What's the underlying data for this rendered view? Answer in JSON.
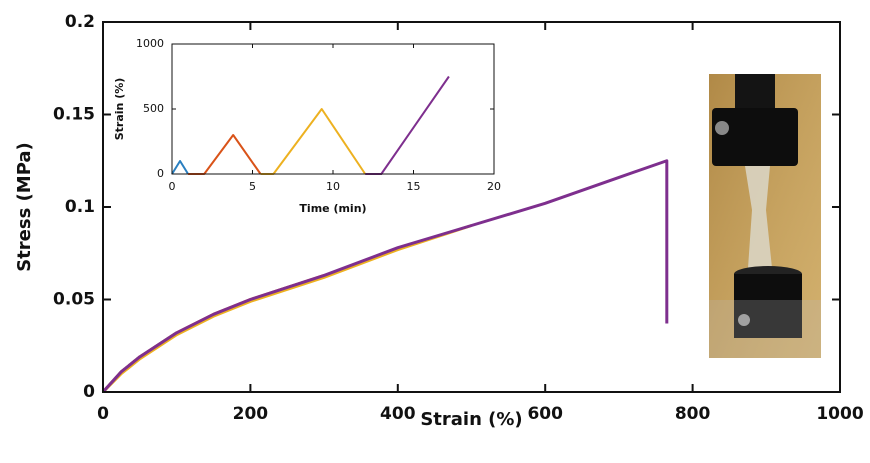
{
  "chart_data": [
    {
      "type": "line",
      "x_label": "Strain (%)",
      "y_label": "Stress (MPa)",
      "x": [
        0,
        25,
        50,
        100,
        150,
        200,
        300,
        400,
        500,
        600,
        700,
        765,
        765
      ],
      "series": [
        {
          "color": "#2a7fc0",
          "values": [
            0,
            0.011,
            0.019,
            0.032,
            null,
            null,
            null,
            null,
            null,
            null,
            null,
            null,
            null
          ]
        },
        {
          "color": "#d95319",
          "values": [
            0,
            0.011,
            0.019,
            0.032,
            0.042,
            0.05,
            0.063,
            null,
            null,
            null,
            null,
            null,
            null
          ]
        },
        {
          "color": "#edb120",
          "values": [
            0,
            0.01,
            0.018,
            0.031,
            0.041,
            0.049,
            0.062,
            0.077,
            0.09,
            null,
            null,
            null,
            null
          ]
        },
        {
          "color": "#7e2f8e",
          "values": [
            0,
            0.011,
            0.019,
            0.032,
            0.042,
            0.05,
            0.063,
            0.078,
            0.09,
            0.102,
            0.116,
            0.125,
            0.037
          ]
        }
      ],
      "xlim": [
        0,
        1000
      ],
      "xticks": [
        0,
        200,
        400,
        600,
        800,
        1000
      ],
      "ylim": [
        0,
        0.2
      ],
      "yticks": [
        0,
        0.05,
        0.1,
        0.15,
        0.2
      ]
    },
    {
      "type": "line",
      "x_label": "Time (min)",
      "y_label": "Strain (%)",
      "x": [
        0,
        0.5,
        1,
        2,
        3.8,
        5.5,
        6.3,
        9.3,
        12,
        13,
        17.2
      ],
      "series": [
        {
          "color": "#2a7fc0",
          "values": [
            0,
            100,
            0,
            null,
            null,
            null,
            null,
            null,
            null,
            null,
            null
          ]
        },
        {
          "color": "#d95319",
          "values": [
            null,
            null,
            0,
            0,
            300,
            0,
            null,
            null,
            null,
            null,
            null
          ]
        },
        {
          "color": "#edb120",
          "values": [
            null,
            null,
            null,
            null,
            null,
            0,
            0,
            500,
            0,
            null,
            null
          ]
        },
        {
          "color": "#7e2f8e",
          "values": [
            null,
            null,
            null,
            null,
            null,
            null,
            null,
            null,
            0,
            0,
            750
          ]
        }
      ],
      "xlim": [
        0,
        20
      ],
      "xticks": [
        0,
        5,
        10,
        15,
        20
      ],
      "ylim": [
        0,
        1000
      ],
      "yticks": [
        0,
        500,
        1000
      ]
    }
  ]
}
